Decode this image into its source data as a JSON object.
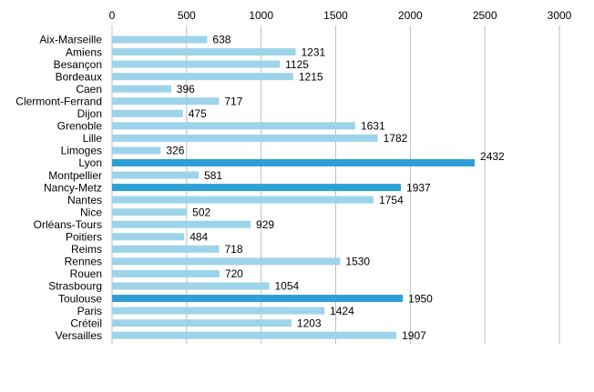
{
  "chart_data": {
    "type": "bar",
    "orientation": "horizontal",
    "title": "",
    "xlabel": "",
    "ylabel": "",
    "xlim": [
      0,
      3000
    ],
    "x_ticks": [
      0,
      500,
      1000,
      1500,
      2000,
      2500,
      3000
    ],
    "x_tick_labels": [
      "0",
      "500",
      "1000",
      "1500",
      "2000",
      "2500",
      "3000"
    ],
    "x_axis_position": "top",
    "grid": "vertical",
    "legend": "none",
    "categories": [
      "Aix-Marseille",
      "Amiens",
      "Besançon",
      "Bordeaux",
      "Caen",
      "Clermont-Ferrand",
      "Dijon",
      "Grenoble",
      "Lille",
      "Limoges",
      "Lyon",
      "Montpellier",
      "Nancy-Metz",
      "Nantes",
      "Nice",
      "Orléans-Tours",
      "Poitiers",
      "Reims",
      "Rennes",
      "Rouen",
      "Strasbourg",
      "Toulouse",
      "Paris",
      "Créteil",
      "Versailles"
    ],
    "values": [
      638,
      1231,
      1125,
      1215,
      396,
      717,
      475,
      1631,
      1782,
      326,
      2432,
      581,
      1937,
      1754,
      502,
      929,
      484,
      718,
      1530,
      720,
      1054,
      1950,
      1424,
      1203,
      1907
    ],
    "data_labels": [
      "638",
      "1231",
      "1125",
      "1215",
      "396",
      "717",
      "475",
      "1631",
      "1782",
      "326",
      "2432",
      "581",
      "1937",
      "1754",
      "502",
      "929",
      "484",
      "718",
      "1530",
      "720",
      "1054",
      "1950",
      "1424",
      "1203",
      "1907"
    ],
    "highlighted": [
      "Lyon",
      "Nancy-Metz",
      "Toulouse"
    ],
    "colors": {
      "bar": "#9dd4ea",
      "highlight": "#2e9fd6",
      "grid": "#bfbfbf",
      "text": "#000000"
    }
  }
}
